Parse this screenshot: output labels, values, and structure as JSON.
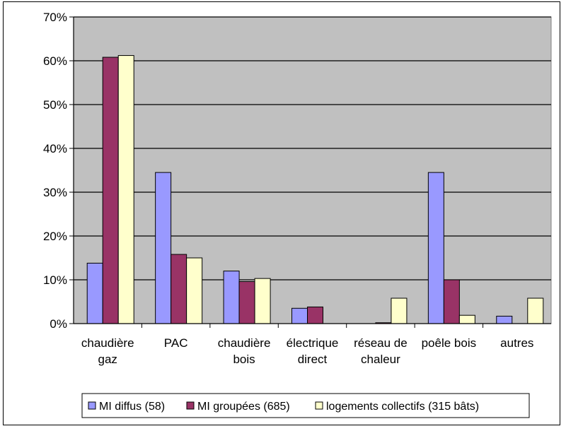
{
  "chart_data": {
    "type": "bar",
    "categories": [
      [
        "chaudière",
        "gaz"
      ],
      [
        "PAC"
      ],
      [
        "chaudière",
        "bois"
      ],
      [
        "électrique",
        "direct"
      ],
      [
        "réseau de",
        "chaleur"
      ],
      [
        "poêle bois"
      ],
      [
        "autres"
      ]
    ],
    "series": [
      {
        "name": "MI diffus (58)",
        "color": "#9999ff",
        "values": [
          13.8,
          34.5,
          12.0,
          3.5,
          0,
          34.5,
          1.7
        ]
      },
      {
        "name": "MI groupées (685)",
        "color": "#993366",
        "values": [
          60.8,
          15.8,
          9.6,
          3.8,
          0.2,
          10.0,
          0
        ]
      },
      {
        "name": "logements collectifs (315 bâts)",
        "color": "#ffffcc",
        "values": [
          61.2,
          15.0,
          10.3,
          0,
          5.8,
          1.9,
          5.8
        ]
      }
    ],
    "ylim": [
      0,
      70
    ],
    "yticks": [
      "0%",
      "10%",
      "20%",
      "30%",
      "40%",
      "50%",
      "60%",
      "70%"
    ],
    "plot_background": "#c0c0c0",
    "grid": true,
    "legend_position": "bottom"
  }
}
